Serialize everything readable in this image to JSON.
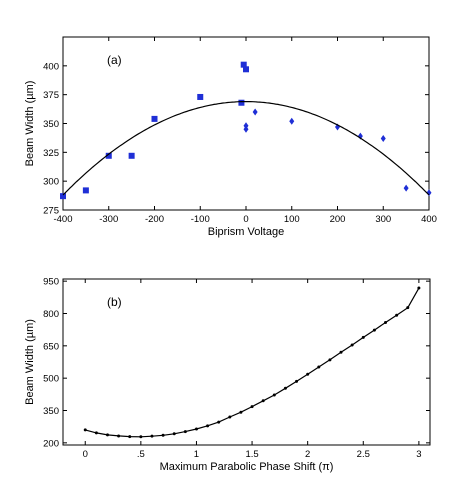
{
  "chart_data": [
    {
      "type": "scatter",
      "panel_label": "(a)",
      "title": "",
      "xlabel": "Biprism Voltage",
      "ylabel": "Beam Width (µm)",
      "xlim": [
        -400,
        400
      ],
      "ylim": [
        275,
        425
      ],
      "xticks": [
        -400,
        -300,
        -200,
        -100,
        0,
        100,
        200,
        300,
        400
      ],
      "yticks": [
        275,
        300,
        325,
        350,
        375,
        400
      ],
      "grid": false,
      "legend": "none",
      "colors": {
        "markers": "#1f2fd6",
        "fit_line": "#000000"
      },
      "series": [
        {
          "marker": "square",
          "points": [
            {
              "x": -400,
              "y": 287
            },
            {
              "x": -350,
              "y": 292
            },
            {
              "x": -300,
              "y": 322
            },
            {
              "x": -250,
              "y": 322
            },
            {
              "x": -200,
              "y": 354
            },
            {
              "x": -100,
              "y": 373
            },
            {
              "x": -10,
              "y": 368
            },
            {
              "x": -5,
              "y": 401
            },
            {
              "x": 0,
              "y": 397
            }
          ]
        },
        {
          "marker": "diamond",
          "points": [
            {
              "x": 0,
              "y": 345
            },
            {
              "x": 0,
              "y": 348
            },
            {
              "x": 20,
              "y": 360
            },
            {
              "x": 100,
              "y": 352
            },
            {
              "x": 200,
              "y": 347
            },
            {
              "x": 250,
              "y": 339
            },
            {
              "x": 300,
              "y": 337
            },
            {
              "x": 350,
              "y": 294
            },
            {
              "x": 400,
              "y": 290
            }
          ]
        },
        {
          "marker": "line",
          "fit": "parabola",
          "vertex": {
            "x": 0,
            "y": 369
          },
          "points": [
            {
              "x": -400,
              "y": 288
            },
            {
              "x": -300,
              "y": 323
            },
            {
              "x": -200,
              "y": 348
            },
            {
              "x": -100,
              "y": 364
            },
            {
              "x": 0,
              "y": 369
            },
            {
              "x": 100,
              "y": 364
            },
            {
              "x": 200,
              "y": 348
            },
            {
              "x": 300,
              "y": 323
            },
            {
              "x": 400,
              "y": 288
            }
          ]
        }
      ]
    },
    {
      "type": "line",
      "panel_label": "(b)",
      "title": "",
      "xlabel": "Maximum Parabolic Phase Shift (π)",
      "ylabel": "Beam Width (µm)",
      "xlim": [
        -0.2,
        3.1
      ],
      "ylim": [
        190,
        960
      ],
      "xticks": [
        0,
        0.5,
        1,
        1.5,
        2,
        2.5,
        3
      ],
      "xtick_labels": [
        "0",
        ".5",
        "1",
        "1.5",
        "2",
        "2.5",
        "3"
      ],
      "yticks": [
        200,
        350,
        500,
        650,
        800,
        950
      ],
      "grid": false,
      "legend": "none",
      "colors": {
        "line": "#000000",
        "markers": "#000000"
      },
      "x": [
        0,
        0.1,
        0.2,
        0.3,
        0.4,
        0.5,
        0.6,
        0.7,
        0.8,
        0.9,
        1.0,
        1.1,
        1.2,
        1.3,
        1.4,
        1.5,
        1.6,
        1.7,
        1.8,
        1.9,
        2.0,
        2.1,
        2.2,
        2.3,
        2.4,
        2.5,
        2.6,
        2.7,
        2.8,
        2.9,
        3.0
      ],
      "series": [
        {
          "marker": "dot",
          "values": [
            260,
            246,
            237,
            232,
            229,
            228,
            231,
            235,
            242,
            252,
            264,
            279,
            296,
            320,
            342,
            368,
            395,
            422,
            453,
            485,
            518,
            552,
            585,
            620,
            654,
            689,
            723,
            758,
            792,
            827,
            918
          ]
        }
      ]
    }
  ]
}
